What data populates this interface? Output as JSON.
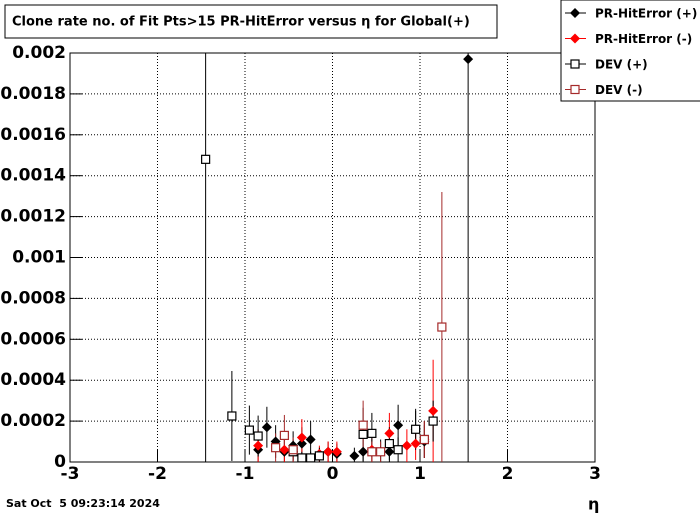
{
  "chart_data": {
    "type": "scatter",
    "title": "Clone rate no. of Fit Pts>15 PR-HitError versus η for Global(+)",
    "x_label": "η",
    "timestamp": "Sat Oct  5 09:23:14 2024",
    "xlim": [
      -3,
      3
    ],
    "xticks": [
      -3,
      -2,
      -1,
      0,
      1,
      2,
      3
    ],
    "ylim": [
      0,
      0.002
    ],
    "yticks": [
      0,
      0.0002,
      0.0004,
      0.0006,
      0.0008,
      0.001,
      0.0012,
      0.0014,
      0.0016,
      0.0018,
      0.002
    ],
    "grid": true,
    "legend": "top-right",
    "series": [
      {
        "name": "PR-HitError (+)",
        "color": "#000000",
        "marker": "diamond",
        "x": [
          -0.85,
          -0.75,
          -0.65,
          -0.55,
          -0.45,
          -0.35,
          -0.25,
          -0.05,
          0.05,
          0.25,
          0.35,
          0.45,
          0.55,
          0.65,
          0.75,
          0.95,
          1.05,
          1.15,
          1.55
        ],
        "values": [
          6e-05,
          0.00017,
          0.0001,
          5e-05,
          8e-05,
          9e-05,
          0.00011,
          5e-05,
          4e-05,
          3e-05,
          5e-05,
          5e-05,
          5e-05,
          5e-05,
          0.00018,
          0.00016,
          0.0001,
          0.0002,
          0.00197
        ],
        "errors": [
          8e-05,
          0.0001,
          8e-05,
          6e-05,
          7e-05,
          8e-05,
          9e-05,
          5e-05,
          5e-05,
          4e-05,
          6e-05,
          6e-05,
          6e-05,
          6e-05,
          0.0001,
          9e-05,
          8e-05,
          0.0001,
          0.00197
        ]
      },
      {
        "name": "PR-HitError (-)",
        "color": "#ff0000",
        "marker": "diamond",
        "x": [
          -0.85,
          -0.55,
          -0.45,
          -0.35,
          -0.15,
          -0.05,
          0.05,
          0.45,
          0.65,
          0.85,
          0.95,
          1.05,
          1.15
        ],
        "values": [
          8e-05,
          6e-05,
          5e-05,
          0.00012,
          4e-05,
          5e-05,
          5e-05,
          6e-05,
          0.00014,
          8e-05,
          9e-05,
          0.00011,
          0.00025
        ],
        "errors": [
          8e-05,
          6e-05,
          5e-05,
          9e-05,
          4e-05,
          5e-05,
          5e-05,
          6e-05,
          0.0001,
          8e-05,
          8e-05,
          9e-05,
          0.00025
        ]
      },
      {
        "name": "DEV (+)",
        "color": "#000000",
        "marker": "square-open",
        "x": [
          -1.45,
          -1.15,
          -0.95,
          -0.85,
          -0.45,
          -0.35,
          -0.25,
          -0.15,
          0.35,
          0.45,
          0.65,
          0.75,
          0.95,
          1.05,
          1.15
        ],
        "values": [
          0.00148,
          0.000225,
          0.000156,
          0.000127,
          5e-05,
          2e-05,
          2e-05,
          3e-05,
          0.000135,
          0.00014,
          9e-05,
          6e-05,
          0.00016,
          0.00011,
          0.0002
        ],
        "errors": [
          0.00148,
          0.00022,
          0.00012,
          0.0001,
          6e-05,
          3e-05,
          3e-05,
          4e-05,
          0.00013,
          0.0001,
          8e-05,
          6e-05,
          0.0001,
          9e-05,
          0.0001
        ]
      },
      {
        "name": "DEV (-)",
        "color": "#a52a2a",
        "marker": "square-open",
        "x": [
          -0.65,
          -0.55,
          -0.45,
          0.35,
          0.45,
          0.55,
          1.05,
          1.25
        ],
        "values": [
          7e-05,
          0.00013,
          6e-05,
          0.00018,
          5e-05,
          5e-05,
          0.00011,
          0.00066
        ],
        "errors": [
          7e-05,
          0.0001,
          6e-05,
          0.00012,
          5e-05,
          5e-05,
          9e-05,
          0.00066
        ]
      }
    ]
  }
}
